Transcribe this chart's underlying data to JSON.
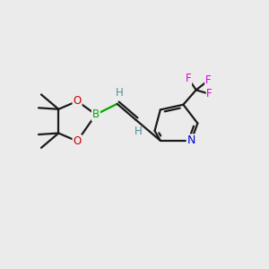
{
  "background_color": "#ebebeb",
  "bond_color": "#1a1a1a",
  "B_color": "#00aa00",
  "O_color": "#cc0000",
  "N_color": "#0000dd",
  "F_color": "#dd00dd",
  "H_color": "#4a9090",
  "line_width": 1.6,
  "font_size": 8.5,
  "xlim": [
    0,
    10
  ],
  "ylim": [
    0,
    10
  ]
}
